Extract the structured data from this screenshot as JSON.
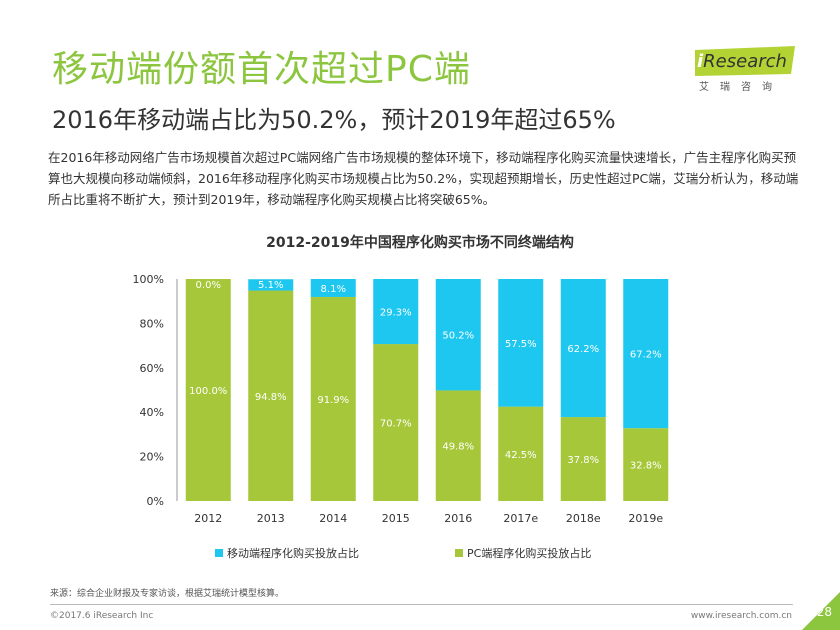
{
  "header": {
    "title": "移动端份额首次超过PC端",
    "subtitle": "2016年移动端占比为50.2%，预计2019年超过65%",
    "body": "在2016年移动网络广告市场规模首次超过PC端网络广告市场规模的整体环境下，移动端程序化购买流量快速增长，广告主程序化购买预算也大规模向移动端倾斜，2016年移动程序化购买市场规模占比为50.2%，实现超预期增长，历史性超过PC端，艾瑞分析认为，移动端所占比重将不断扩大，预计到2019年，移动端程序化购买规模占比将突破65%。"
  },
  "logo": {
    "prefix": "i",
    "word": "Research",
    "cn": "艾瑞咨询"
  },
  "chart_data": {
    "type": "bar",
    "stacked": true,
    "title": "2012-2019年中国程序化购买市场不同终端结构",
    "categories": [
      "2012",
      "2013",
      "2014",
      "2015",
      "2016",
      "2017e",
      "2018e",
      "2019e"
    ],
    "series": [
      {
        "name": "PC端程序化购买投放占比",
        "color": "#a6c73a",
        "values": [
          100.0,
          94.8,
          91.9,
          70.7,
          49.8,
          42.5,
          37.8,
          32.8
        ],
        "labels": [
          "100.0%",
          "94.8%",
          "91.9%",
          "70.7%",
          "49.8%",
          "42.5%",
          "37.8%",
          "32.8%"
        ]
      },
      {
        "name": "移动端程序化购买投放占比",
        "color": "#1ec7ef",
        "values": [
          0.0,
          5.1,
          8.1,
          29.3,
          50.2,
          57.5,
          62.2,
          67.2
        ],
        "labels": [
          "0.0%",
          "5.1%",
          "8.1%",
          "29.3%",
          "50.2%",
          "57.5%",
          "62.2%",
          "67.2%"
        ]
      }
    ],
    "y_ticks": [
      "0%",
      "20%",
      "40%",
      "60%",
      "80%",
      "100%"
    ],
    "ylim": [
      0,
      100
    ],
    "grid": false,
    "legend_position": "bottom"
  },
  "footer": {
    "source": "来源：综合企业财报及专家访谈，根据艾瑞统计模型核算。",
    "copyright": "©2017.6 iResearch Inc",
    "site": "www.iresearch.com.cn",
    "page": "28"
  }
}
